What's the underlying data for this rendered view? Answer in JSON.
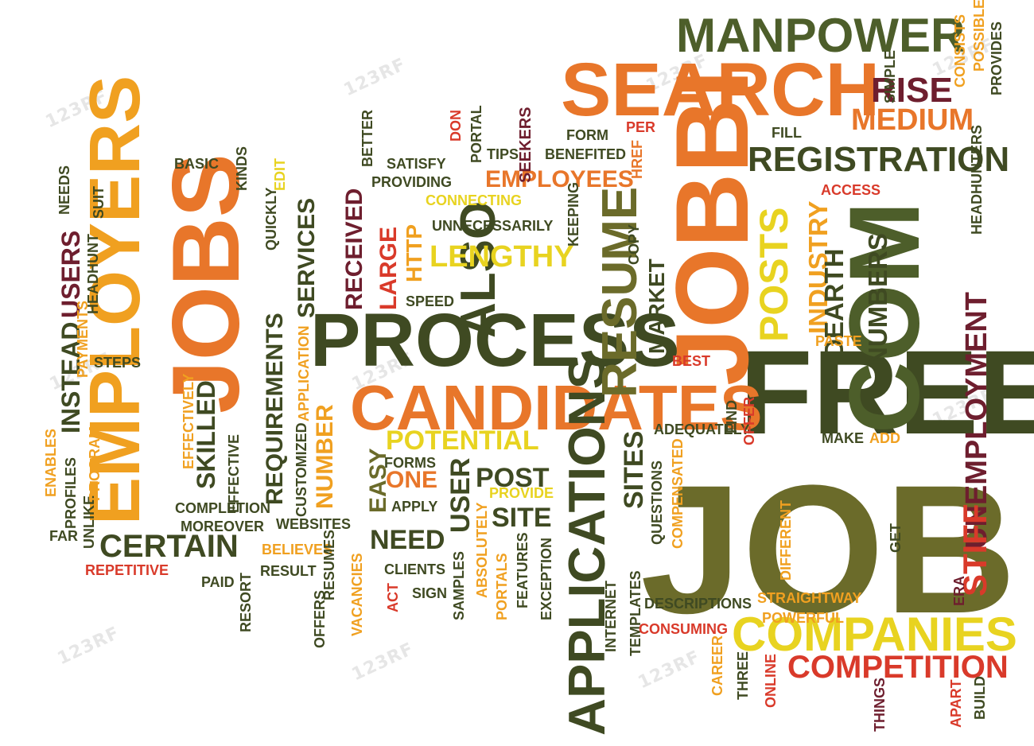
{
  "colors": {
    "dark_green": "#3f4a22",
    "olive": "#6b6b2a",
    "orange": "#e8762a",
    "gold": "#f0a020",
    "yellow": "#e8d320",
    "red": "#d93a2a",
    "maroon": "#6e1e2e",
    "green": "#4d5e2a"
  },
  "watermark": "123RF",
  "words": [
    {
      "t": "JOB",
      "c": "olive"
    },
    {
      "t": "FREE",
      "c": "dark_green"
    },
    {
      "t": "JOBBI",
      "c": "orange"
    },
    {
      "t": "COM",
      "c": "green"
    },
    {
      "t": "SEARCH",
      "c": "orange"
    },
    {
      "t": "MANPOWER",
      "c": "green"
    },
    {
      "t": "PROCESS",
      "c": "dark_green"
    },
    {
      "t": "CANDIDATES",
      "c": "orange"
    },
    {
      "t": "EMPLOYERS",
      "c": "gold"
    },
    {
      "t": "JOBS",
      "c": "orange"
    },
    {
      "t": "APPLICATIONS",
      "c": "dark_green"
    },
    {
      "t": "COMPANIES",
      "c": "yellow"
    },
    {
      "t": "COMPETITION",
      "c": "red"
    },
    {
      "t": "REGISTRATION",
      "c": "dark_green"
    },
    {
      "t": "MEDIUM",
      "c": "orange"
    },
    {
      "t": "RISE",
      "c": "maroon"
    },
    {
      "t": "RESUME",
      "c": "olive"
    },
    {
      "t": "POSTS",
      "c": "yellow"
    },
    {
      "t": "ALSO",
      "c": "dark_green"
    },
    {
      "t": "EMPLOYEES",
      "c": "orange"
    },
    {
      "t": "LENGTHY",
      "c": "yellow"
    },
    {
      "t": "UNEMPLOYMENT",
      "c": "maroon"
    },
    {
      "t": "STIFF",
      "c": "red"
    },
    {
      "t": "CERTAIN",
      "c": "dark_green"
    },
    {
      "t": "POTENTIAL",
      "c": "yellow"
    },
    {
      "t": "INDUSTRY",
      "c": "gold"
    },
    {
      "t": "DEARTH",
      "c": "dark_green"
    },
    {
      "t": "NUMBERS",
      "c": "dark_green"
    },
    {
      "t": "USERS",
      "c": "maroon"
    },
    {
      "t": "INSTEAD",
      "c": "dark_green"
    },
    {
      "t": "SKILLED",
      "c": "dark_green"
    },
    {
      "t": "REQUIREMENTS",
      "c": "dark_green"
    },
    {
      "t": "SERVICES",
      "c": "dark_green"
    },
    {
      "t": "RECEIVED",
      "c": "maroon"
    },
    {
      "t": "LARGE",
      "c": "red"
    },
    {
      "t": "HTTP",
      "c": "gold"
    },
    {
      "t": "MARKET",
      "c": "dark_green"
    },
    {
      "t": "EASY",
      "c": "olive"
    },
    {
      "t": "ONE",
      "c": "orange"
    },
    {
      "t": "POST",
      "c": "dark_green"
    },
    {
      "t": "NEED",
      "c": "dark_green"
    },
    {
      "t": "USER",
      "c": "dark_green"
    },
    {
      "t": "SITE",
      "c": "dark_green"
    },
    {
      "t": "SITES",
      "c": "dark_green"
    },
    {
      "t": "NUMBER",
      "c": "gold"
    },
    {
      "t": "SEEKERS",
      "c": "maroon"
    },
    {
      "t": "FORM",
      "c": "dark_green"
    },
    {
      "t": "PER",
      "c": "red"
    },
    {
      "t": "TIPS",
      "c": "dark_green"
    },
    {
      "t": "BENEFITED",
      "c": "dark_green"
    },
    {
      "t": "HREF",
      "c": "orange"
    },
    {
      "t": "SATISFY",
      "c": "dark_green"
    },
    {
      "t": "PORTAL",
      "c": "dark_green"
    },
    {
      "t": "PROVIDING",
      "c": "dark_green"
    },
    {
      "t": "CONNECTING",
      "c": "yellow"
    },
    {
      "t": "UNNECESSARILY",
      "c": "dark_green"
    },
    {
      "t": "KEEPING",
      "c": "dark_green"
    },
    {
      "t": "COPY",
      "c": "dark_green"
    },
    {
      "t": "SPEED",
      "c": "dark_green"
    },
    {
      "t": "DON",
      "c": "red"
    },
    {
      "t": "BETTER",
      "c": "dark_green"
    },
    {
      "t": "KINDS",
      "c": "dark_green"
    },
    {
      "t": "EDIT",
      "c": "yellow"
    },
    {
      "t": "QUICKLY",
      "c": "dark_green"
    },
    {
      "t": "BASIC",
      "c": "dark_green"
    },
    {
      "t": "NEEDS",
      "c": "dark_green"
    },
    {
      "t": "SUIT",
      "c": "dark_green"
    },
    {
      "t": "HEADHUNT",
      "c": "dark_green"
    },
    {
      "t": "PAYMENTS",
      "c": "gold"
    },
    {
      "t": "STEPS",
      "c": "dark_green"
    },
    {
      "t": "EFFECTIVELY",
      "c": "gold"
    },
    {
      "t": "EFFECTIVE",
      "c": "dark_green"
    },
    {
      "t": "APPLICATION",
      "c": "gold"
    },
    {
      "t": "CUSTOMIZED",
      "c": "dark_green"
    },
    {
      "t": "COMPLETION",
      "c": "dark_green"
    },
    {
      "t": "MOREOVER",
      "c": "dark_green"
    },
    {
      "t": "WEBSITES",
      "c": "dark_green"
    },
    {
      "t": "BELIEVES",
      "c": "gold"
    },
    {
      "t": "RESULT",
      "c": "dark_green"
    },
    {
      "t": "PAID",
      "c": "dark_green"
    },
    {
      "t": "RESORT",
      "c": "dark_green"
    },
    {
      "t": "RESUMES",
      "c": "dark_green"
    },
    {
      "t": "OFFERS",
      "c": "dark_green"
    },
    {
      "t": "VACANCIES",
      "c": "gold"
    },
    {
      "t": "REPETITIVE",
      "c": "red"
    },
    {
      "t": "UNLIKE",
      "c": "dark_green"
    },
    {
      "t": "FAR",
      "c": "dark_green"
    },
    {
      "t": "PROFILES",
      "c": "dark_green"
    },
    {
      "t": "ENABLES",
      "c": "gold"
    },
    {
      "t": "PROGRAM",
      "c": "gold"
    },
    {
      "t": "FORMS",
      "c": "dark_green"
    },
    {
      "t": "APPLY",
      "c": "dark_green"
    },
    {
      "t": "PROVIDE",
      "c": "yellow"
    },
    {
      "t": "CLIENTS",
      "c": "dark_green"
    },
    {
      "t": "SIGN",
      "c": "dark_green"
    },
    {
      "t": "ACT",
      "c": "red"
    },
    {
      "t": "ABSOLUTELY",
      "c": "gold"
    },
    {
      "t": "SAMPLES",
      "c": "dark_green"
    },
    {
      "t": "PORTALS",
      "c": "gold"
    },
    {
      "t": "FEATURES",
      "c": "dark_green"
    },
    {
      "t": "EXCEPTION",
      "c": "dark_green"
    },
    {
      "t": "INTERNET",
      "c": "dark_green"
    },
    {
      "t": "TEMPLATES",
      "c": "dark_green"
    },
    {
      "t": "DESCRIPTIONS",
      "c": "dark_green"
    },
    {
      "t": "CONSUMING",
      "c": "red"
    },
    {
      "t": "STRAIGHTWAY",
      "c": "gold"
    },
    {
      "t": "POWERFUL",
      "c": "gold"
    },
    {
      "t": "QUESTIONS",
      "c": "dark_green"
    },
    {
      "t": "COMPENSATED",
      "c": "gold"
    },
    {
      "t": "DIFFERENT",
      "c": "gold"
    },
    {
      "t": "ADEQUATELY",
      "c": "dark_green"
    },
    {
      "t": "OFFER",
      "c": "red"
    },
    {
      "t": "MAKE",
      "c": "dark_green"
    },
    {
      "t": "ADD",
      "c": "gold"
    },
    {
      "t": "FIND",
      "c": "dark_green"
    },
    {
      "t": "BEST",
      "c": "red"
    },
    {
      "t": "PASTE",
      "c": "gold"
    },
    {
      "t": "ACCESS",
      "c": "red"
    },
    {
      "t": "HEADHUNTERS",
      "c": "dark_green"
    },
    {
      "t": "FILL",
      "c": "dark_green"
    },
    {
      "t": "SIMPLE",
      "c": "dark_green"
    },
    {
      "t": "CONSISTS",
      "c": "gold"
    },
    {
      "t": "POSSIBLE",
      "c": "gold"
    },
    {
      "t": "PROVIDES",
      "c": "dark_green"
    },
    {
      "t": "GET",
      "c": "dark_green"
    },
    {
      "t": "ERA",
      "c": "maroon"
    },
    {
      "t": "CAREER",
      "c": "gold"
    },
    {
      "t": "THREE",
      "c": "dark_green"
    },
    {
      "t": "ONLINE",
      "c": "red"
    },
    {
      "t": "THINGS",
      "c": "maroon"
    },
    {
      "t": "APART",
      "c": "red"
    },
    {
      "t": "BUILD",
      "c": "dark_green"
    }
  ]
}
